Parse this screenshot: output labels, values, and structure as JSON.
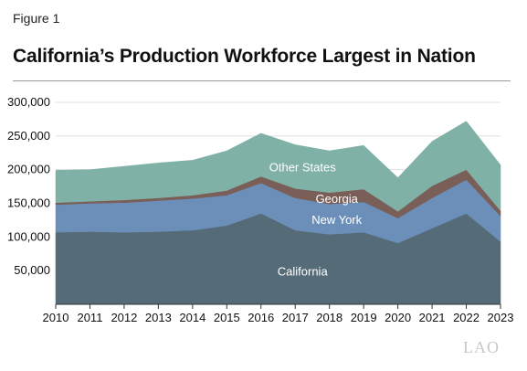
{
  "figure_label": "Figure 1",
  "title": "California’s Production Workforce Largest in Nation",
  "logo_text": "LAO",
  "chart_data": {
    "type": "area",
    "stacked": true,
    "x": [
      2010,
      2011,
      2012,
      2013,
      2014,
      2015,
      2016,
      2017,
      2018,
      2019,
      2020,
      2021,
      2022,
      2023
    ],
    "x_tick_labels": [
      "2010",
      "2011",
      "2012",
      "2013",
      "2014",
      "2015",
      "2016",
      "2017",
      "2018",
      "2019",
      "2020",
      "2021",
      "2022",
      "2023"
    ],
    "ylim": [
      0,
      300000
    ],
    "y_ticks": [
      50000,
      100000,
      150000,
      200000,
      250000,
      300000
    ],
    "y_tick_labels": [
      "50,000",
      "100,000",
      "150,000",
      "200,000",
      "250,000",
      "300,000"
    ],
    "grid": "horizontal",
    "series": [
      {
        "name": "California",
        "color": "#566b78",
        "values": [
          107000,
          108000,
          107000,
          108000,
          110000,
          117000,
          135000,
          110000,
          104000,
          107000,
          91000,
          113000,
          135000,
          93000
        ]
      },
      {
        "name": "New York",
        "color": "#6b8fb8",
        "values": [
          41000,
          42000,
          44000,
          46000,
          47000,
          45000,
          45000,
          48000,
          45000,
          45000,
          37000,
          45000,
          50000,
          38000
        ]
      },
      {
        "name": "Georgia",
        "color": "#7a5f59",
        "values": [
          3000,
          3000,
          4000,
          4000,
          5000,
          7000,
          10000,
          14000,
          17000,
          19000,
          10000,
          18000,
          15000,
          8000
        ]
      },
      {
        "name": "Other States",
        "color": "#7fb1a6",
        "values": [
          48000,
          47000,
          50000,
          52000,
          52000,
          59000,
          64000,
          65000,
          62000,
          65000,
          50000,
          66000,
          72000,
          68000
        ]
      }
    ]
  }
}
